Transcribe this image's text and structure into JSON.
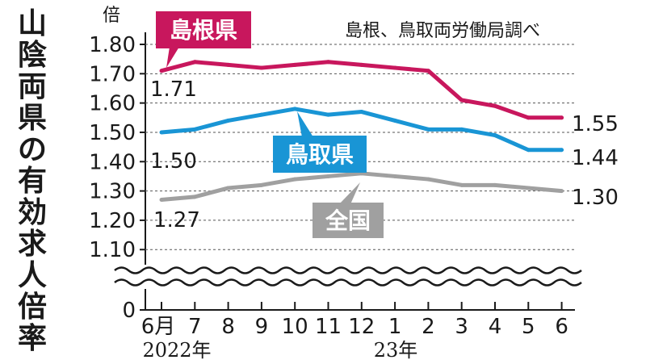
{
  "title_chars": [
    "山",
    "陰",
    "両",
    "県",
    "の",
    "有",
    "効",
    "求",
    "人",
    "倍",
    "率"
  ],
  "source": "島根、鳥取両労働局調べ",
  "colors": {
    "shimane": "#c8175d",
    "tottori": "#1995d5",
    "national": "#a0a0a0",
    "text": "#1a1a1a",
    "grid": "#555555"
  },
  "chart_data": {
    "type": "line",
    "y_unit": "倍",
    "y_ticks": [
      "1.80",
      "1.70",
      "1.60",
      "1.50",
      "1.40",
      "1.30",
      "1.20",
      "1.10",
      "0"
    ],
    "y_break": [
      0,
      1.1
    ],
    "ylim": [
      1.1,
      1.8
    ],
    "categories": [
      "6月",
      "7",
      "8",
      "9",
      "10",
      "11",
      "12",
      "1",
      "2",
      "3",
      "4",
      "5",
      "6"
    ],
    "year_labels": [
      "2022年",
      "23年"
    ],
    "series": [
      {
        "name": "島根県",
        "key": "shimane",
        "values": [
          1.71,
          1.74,
          1.73,
          1.72,
          1.73,
          1.74,
          1.73,
          1.72,
          1.71,
          1.61,
          1.59,
          1.55,
          1.55
        ],
        "start_label": "1.71",
        "end_label": "1.55"
      },
      {
        "name": "鳥取県",
        "key": "tottori",
        "values": [
          1.5,
          1.51,
          1.54,
          1.56,
          1.58,
          1.56,
          1.57,
          1.54,
          1.51,
          1.51,
          1.49,
          1.44,
          1.44
        ],
        "start_label": "1.50",
        "end_label": "1.44"
      },
      {
        "name": "全国",
        "key": "national",
        "values": [
          1.27,
          1.28,
          1.31,
          1.32,
          1.34,
          1.35,
          1.36,
          1.35,
          1.34,
          1.32,
          1.32,
          1.31,
          1.3
        ],
        "start_label": "1.27",
        "end_label": "1.30"
      }
    ]
  }
}
